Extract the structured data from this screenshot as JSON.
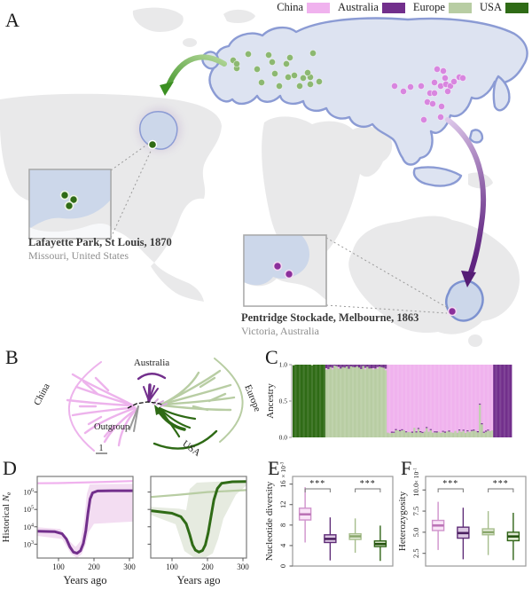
{
  "panels": {
    "a": "A",
    "b": "B",
    "c": "C",
    "d": "D",
    "e": "E",
    "f": "F"
  },
  "legend": {
    "items": [
      {
        "label": "China",
        "color": "#f0b2ee"
      },
      {
        "label": "Australia",
        "color": "#722f8c"
      },
      {
        "label": "Europe",
        "color": "#b8cda3"
      },
      {
        "label": "USA",
        "color": "#2f6b16"
      }
    ]
  },
  "map": {
    "colors": {
      "land": "#e9e9ea",
      "range_fill": "#dde3f1",
      "coast": "#8b9bd4",
      "europe_dot": "#8cb871",
      "china_dot": "#d886df",
      "usa_dot": "#2f6b16",
      "aus_dot": "#8b2f9b"
    },
    "captions": {
      "usa": {
        "title": "Lafayette Park, St Louis, 1870",
        "subtitle": "Missouri, United States"
      },
      "aus": {
        "title": "Pentridge Stockade, Melbourne, 1863",
        "subtitle": "Victoria, Australia"
      }
    },
    "europe_dots": [
      [
        303,
        62
      ],
      [
        263,
        68
      ],
      [
        267,
        77
      ],
      [
        290,
        78
      ],
      [
        327,
        65
      ],
      [
        323,
        72
      ],
      [
        353,
        60
      ],
      [
        310,
        83
      ],
      [
        325,
        87
      ],
      [
        332,
        85
      ],
      [
        342,
        88
      ],
      [
        350,
        87
      ],
      [
        347,
        82
      ],
      [
        295,
        93
      ],
      [
        315,
        97
      ],
      [
        350,
        95
      ],
      [
        267,
        72
      ],
      [
        280,
        61
      ],
      [
        338,
        97
      ],
      [
        360,
        92
      ],
      [
        307,
        70
      ]
    ],
    "china_dots": [
      [
        445,
        97
      ],
      [
        455,
        103
      ],
      [
        463,
        98
      ],
      [
        475,
        97
      ],
      [
        493,
        78
      ],
      [
        490,
        93
      ],
      [
        497,
        97
      ],
      [
        502,
        88
      ],
      [
        503,
        95
      ],
      [
        508,
        97
      ],
      [
        485,
        105
      ],
      [
        490,
        105
      ],
      [
        482,
        115
      ],
      [
        488,
        117
      ],
      [
        498,
        120
      ],
      [
        518,
        87
      ],
      [
        522,
        88
      ],
      [
        500,
        80
      ],
      [
        478,
        135
      ],
      [
        497,
        132
      ],
      [
        512,
        92
      ],
      [
        505,
        103
      ]
    ],
    "usa_site_dot": [
      172,
      163
    ],
    "aus_site_dot": [
      510,
      351
    ],
    "usa_inset_dots": [
      [
        73,
        220
      ],
      [
        83,
        225
      ],
      [
        78,
        232
      ]
    ],
    "aus_inset_dots": [
      [
        313,
        300
      ],
      [
        326,
        309
      ]
    ]
  },
  "tree": {
    "labels": {
      "china": "China",
      "australia": "Australia",
      "europe": "Europe",
      "usa": "USA",
      "outgroup": "Outgroup",
      "scale_bar": "1"
    }
  },
  "chart_data": [
    {
      "id": "ancestry_admixture",
      "type": "bar",
      "subtype": "admixture-stacked-proportions",
      "ylabel": "Ancestry",
      "yticks": [
        "0.0",
        "0.5",
        "1.0"
      ],
      "ylim": [
        0,
        1
      ],
      "groups": [
        {
          "population": "USA",
          "color": "#2f6b16",
          "n": 16,
          "mean_major_ancestry": 1.0
        },
        {
          "population": "Europe",
          "color": "#b8cda3",
          "n": 30,
          "mean_major_ancestry": 0.97,
          "minor_color": "#722f8c",
          "minor_side": "top",
          "minor_mean": 0.03
        },
        {
          "population": "China",
          "color": "#f0b2ee",
          "n": 52,
          "mean_major_ancestry": 0.92,
          "minor_color": "#b8cda3",
          "minor_side": "bottom",
          "minor_mean": 0.08,
          "outlier_index": 45,
          "outlier_minor": 0.45
        },
        {
          "population": "Australia",
          "color": "#722f8c",
          "n": 9,
          "mean_major_ancestry": 1.0
        }
      ]
    },
    {
      "id": "historical_ne_china_australia",
      "type": "line",
      "xlabel": "Years ago",
      "ylabel": "Historical Ne",
      "x_ticks": [
        100,
        200,
        300
      ],
      "y_tick_exponents": [
        3,
        4,
        5,
        6
      ],
      "xlim": [
        40,
        310
      ],
      "ylim_log10": [
        2.2,
        6.9
      ],
      "series": [
        {
          "name": "China",
          "color": "#f0b2ee",
          "width": 2.2,
          "points": [
            [
              40,
              3200000
            ],
            [
              100,
              3300000
            ],
            [
              200,
              3700000
            ],
            [
              310,
              4300000
            ]
          ]
        },
        {
          "name": "Australia",
          "color": "#722f8c",
          "width": 3,
          "points": [
            [
              40,
              5500
            ],
            [
              90,
              5200
            ],
            [
              110,
              4000
            ],
            [
              122,
              2000
            ],
            [
              132,
              700
            ],
            [
              142,
              350
            ],
            [
              152,
              300
            ],
            [
              162,
              420
            ],
            [
              170,
              1100
            ],
            [
              177,
              6000
            ],
            [
              183,
              60000
            ],
            [
              189,
              400000
            ],
            [
              196,
              900000
            ],
            [
              210,
              1150000
            ],
            [
              250,
              1200000
            ],
            [
              310,
              1200000
            ]
          ]
        }
      ],
      "ribbon": {
        "color": "#f3ddf2",
        "upper": [
          [
            40,
            9500
          ],
          [
            105,
            7500
          ],
          [
            130,
            1600
          ],
          [
            148,
            700
          ],
          [
            162,
            1500
          ],
          [
            172,
            20000
          ],
          [
            180,
            800000
          ],
          [
            188,
            2800000
          ],
          [
            310,
            3000000
          ]
        ],
        "lower": [
          [
            40,
            3000
          ],
          [
            110,
            2000
          ],
          [
            135,
            280
          ],
          [
            152,
            160
          ],
          [
            165,
            260
          ],
          [
            175,
            800
          ],
          [
            185,
            5000
          ],
          [
            200,
            15000
          ],
          [
            310,
            20000
          ]
        ]
      }
    },
    {
      "id": "historical_ne_europe_usa",
      "type": "line",
      "xlabel": "Years ago",
      "ylabel": "",
      "x_ticks": [
        100,
        200,
        300
      ],
      "y_tick_exponents": [
        3,
        4,
        5,
        6
      ],
      "xlim": [
        40,
        310
      ],
      "ylim_log10": [
        2.2,
        6.9
      ],
      "series": [
        {
          "name": "Europe",
          "color": "#b8cda3",
          "width": 2.2,
          "points": [
            [
              40,
              520000
            ],
            [
              120,
              700000
            ],
            [
              200,
              1000000
            ],
            [
              310,
              1300000
            ]
          ]
        },
        {
          "name": "USA",
          "color": "#2f6b16",
          "width": 3,
          "points": [
            [
              40,
              85000
            ],
            [
              100,
              60000
            ],
            [
              125,
              38000
            ],
            [
              140,
              15000
            ],
            [
              150,
              3500
            ],
            [
              158,
              900
            ],
            [
              166,
              450
            ],
            [
              176,
              350
            ],
            [
              186,
              430
            ],
            [
              194,
              900
            ],
            [
              202,
              4500
            ],
            [
              210,
              40000
            ],
            [
              218,
              350000
            ],
            [
              228,
              1600000
            ],
            [
              240,
              3200000
            ],
            [
              270,
              3900000
            ],
            [
              310,
              4000000
            ]
          ]
        }
      ],
      "ribbon": {
        "color": "#e6ebe0",
        "upper": [
          [
            40,
            140000
          ],
          [
            120,
            110000
          ],
          [
            140,
            90000
          ],
          [
            150,
            1500000
          ],
          [
            170,
            3500000
          ],
          [
            310,
            4800000
          ]
        ],
        "lower": [
          [
            40,
            48000
          ],
          [
            110,
            14000
          ],
          [
            135,
            400
          ],
          [
            160,
            180
          ],
          [
            195,
            170
          ],
          [
            215,
            300
          ],
          [
            230,
            2000
          ],
          [
            245,
            30000
          ],
          [
            280,
            700000
          ],
          [
            310,
            2400000
          ]
        ]
      }
    },
    {
      "id": "nucleotide_diversity",
      "type": "box",
      "ylabel": "Nucleotide diversity",
      "y_scale_base": "× 10",
      "y_scale_exponent": "-3",
      "yticks": [
        "0",
        "4",
        "8",
        "12",
        "16"
      ],
      "ylim": [
        0,
        17.5
      ],
      "significance": [
        {
          "pair": [
            0,
            1
          ],
          "label": "***"
        },
        {
          "pair": [
            2,
            3
          ],
          "label": "***"
        }
      ],
      "boxes": [
        {
          "name": "China",
          "fill": "#f9e4f7",
          "stroke": "#cf92cb",
          "median_color": "#bb74b6",
          "low": 4.6,
          "q1": 9.0,
          "median": 10.1,
          "q3": 11.3,
          "high": 15.4
        },
        {
          "name": "Australia",
          "fill": "#dcc8e3",
          "stroke": "#5f2d77",
          "median_color": "#4c2161",
          "low": 1.1,
          "q1": 4.6,
          "median": 5.3,
          "q3": 6.1,
          "high": 9.5
        },
        {
          "name": "Europe",
          "fill": "#e9efdf",
          "stroke": "#a6bd8c",
          "median_color": "#8aa76c",
          "low": 2.6,
          "q1": 5.2,
          "median": 5.8,
          "q3": 6.3,
          "high": 9.3
        },
        {
          "name": "USA",
          "fill": "#dfe9d2",
          "stroke": "#2f6416",
          "median_color": "#24510f",
          "low": 1.0,
          "q1": 3.8,
          "median": 4.3,
          "q3": 4.9,
          "high": 7.9
        }
      ]
    },
    {
      "id": "heterozygosity",
      "type": "box",
      "ylabel": "Heterozygosity",
      "y_scale_base": "× 10",
      "y_scale_exponent": "-1",
      "yticks": [
        "2.5",
        "5.0",
        "7.5",
        "10.0"
      ],
      "ylim": [
        1.0,
        11.6
      ],
      "significance": [
        {
          "pair": [
            0,
            1
          ],
          "label": "***"
        },
        {
          "pair": [
            2,
            3
          ],
          "label": "***"
        }
      ],
      "boxes": [
        {
          "name": "China",
          "fill": "#f9e4f7",
          "stroke": "#cf92cb",
          "median_color": "#bb74b6",
          "low": 2.9,
          "q1": 5.2,
          "median": 5.8,
          "q3": 6.4,
          "high": 8.6
        },
        {
          "name": "Australia",
          "fill": "#dcc8e3",
          "stroke": "#5f2d77",
          "median_color": "#4c2161",
          "low": 1.8,
          "q1": 4.3,
          "median": 4.9,
          "q3": 5.6,
          "high": 7.9
        },
        {
          "name": "Europe",
          "fill": "#e9efdf",
          "stroke": "#a6bd8c",
          "median_color": "#8aa76c",
          "low": 2.3,
          "q1": 4.7,
          "median": 5.0,
          "q3": 5.4,
          "high": 7.5
        },
        {
          "name": "USA",
          "fill": "#dfe9d2",
          "stroke": "#2f6416",
          "median_color": "#24510f",
          "low": 1.7,
          "q1": 4.0,
          "median": 4.5,
          "q3": 5.0,
          "high": 7.3
        }
      ]
    }
  ]
}
